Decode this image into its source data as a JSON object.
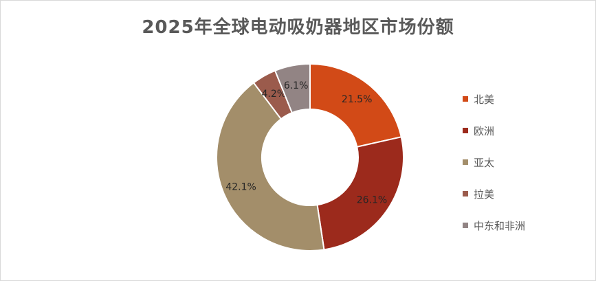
{
  "chart_data": {
    "type": "pie",
    "donut": true,
    "title": "2025年全球电动吸奶器地区市场份额",
    "legend_position": "right",
    "categories": [
      "北美",
      "欧洲",
      "亚太",
      "拉美",
      "中东和非洲"
    ],
    "values": [
      21.5,
      26.1,
      42.1,
      4.2,
      6.1
    ],
    "labels": [
      "21.5%",
      "26.1%",
      "42.1%",
      "4.2%",
      "6.1%"
    ],
    "colors": [
      "#D24A17",
      "#9C2A1C",
      "#A38E6A",
      "#9B5B4C",
      "#928484"
    ]
  }
}
